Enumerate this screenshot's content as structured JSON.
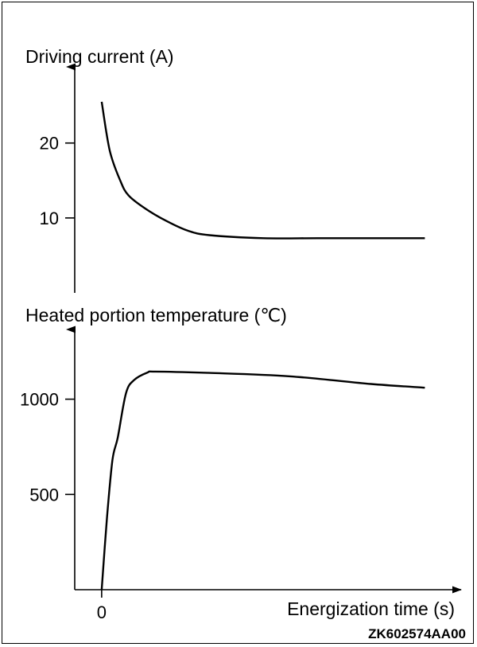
{
  "figure_code": "ZK602574AA00",
  "chart_data": [
    {
      "type": "line",
      "ylabel": "Driving current (A)",
      "xlabel": "",
      "yticks": [
        10,
        20
      ],
      "ylim": [
        0,
        29
      ],
      "xlim": [
        -0.5,
        6.6
      ],
      "grid": false,
      "series": [
        {
          "color": "#000000",
          "x": [
            0,
            0.15,
            0.35,
            0.5,
            0.8,
            1.2,
            1.6,
            2.0,
            3.0,
            4.0,
            5.0,
            6.0
          ],
          "values": [
            25.5,
            19.0,
            14.9,
            13.0,
            11.3,
            9.6,
            8.3,
            7.7,
            7.3,
            7.3,
            7.3,
            7.3
          ]
        }
      ]
    },
    {
      "type": "line",
      "ylabel": "Heated portion temperature (℃)",
      "xlabel": "Energization time (s)",
      "xticks": [
        0
      ],
      "yticks": [
        500,
        1000
      ],
      "ylim": [
        0,
        1320
      ],
      "xlim": [
        -0.5,
        6.6
      ],
      "grid": false,
      "series": [
        {
          "color": "#000000",
          "x": [
            0,
            0.1,
            0.2,
            0.3,
            0.45,
            0.6,
            0.85,
            1.0,
            2.0,
            3.5,
            5.0,
            6.0
          ],
          "values": [
            0,
            380,
            680,
            800,
            1030,
            1100,
            1140,
            1145,
            1138,
            1120,
            1080,
            1060
          ]
        }
      ]
    }
  ]
}
